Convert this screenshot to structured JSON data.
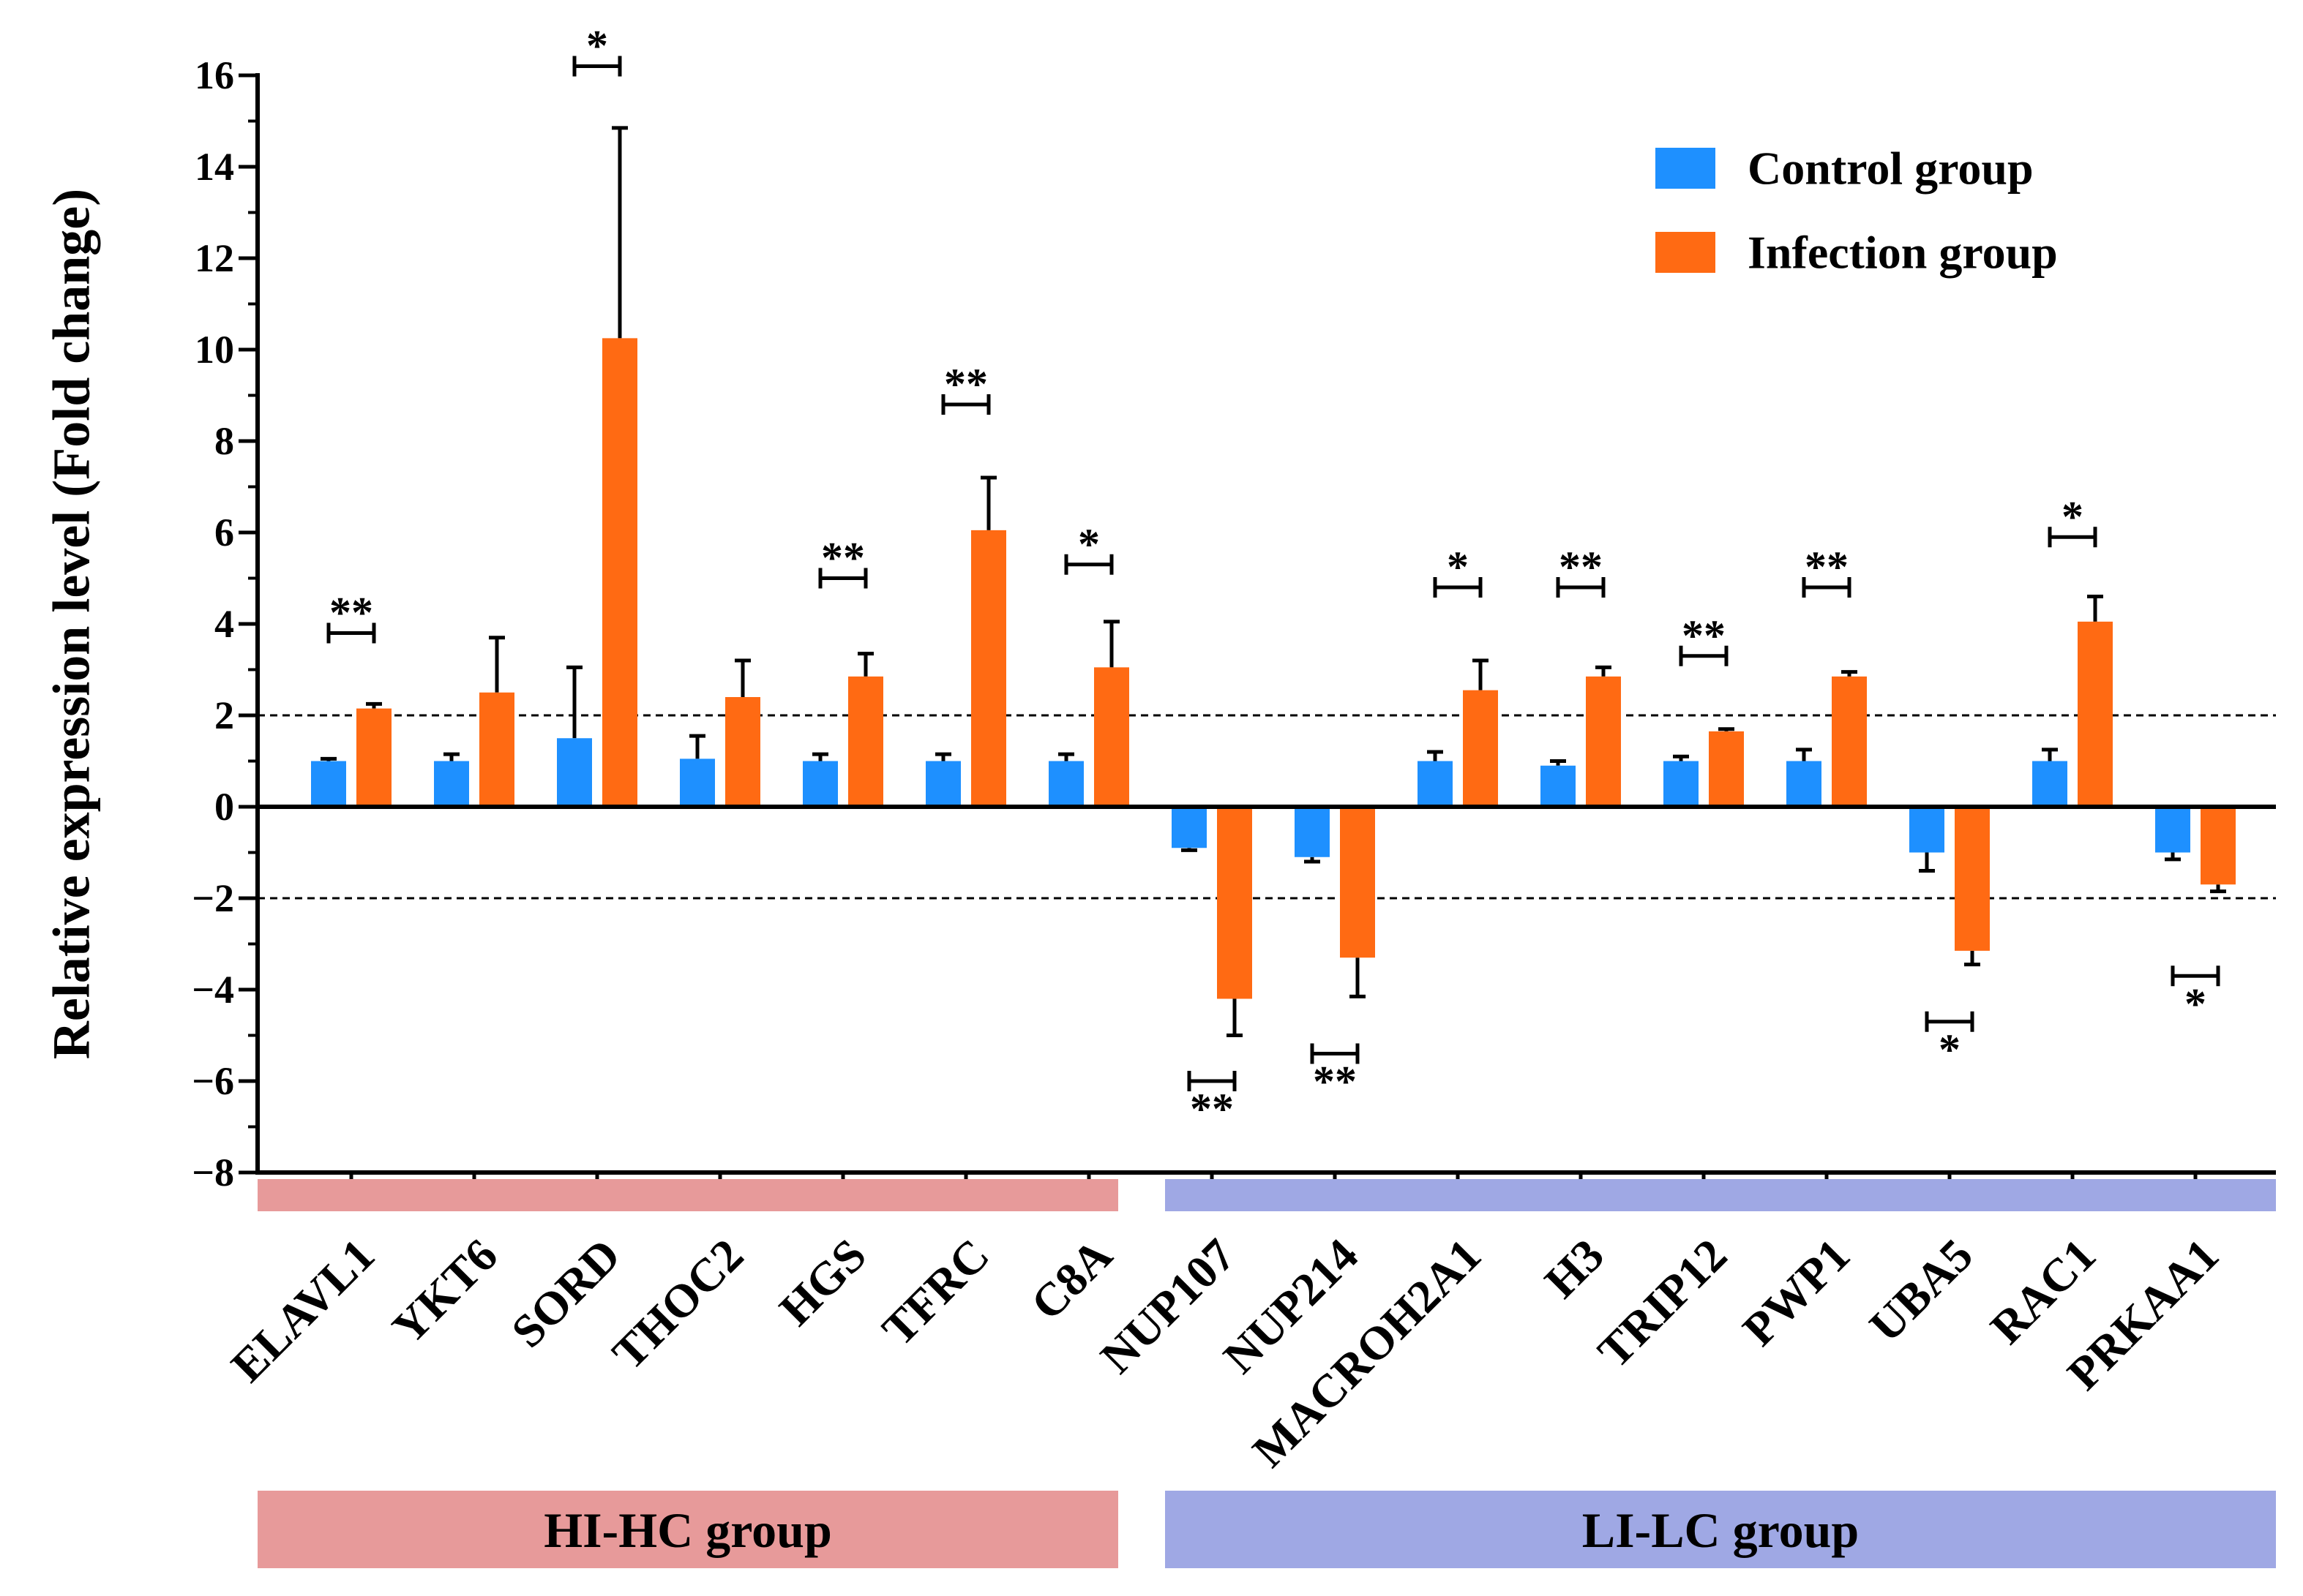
{
  "chart_data": {
    "type": "bar",
    "ylabel": "Relative expression level (Fold change)",
    "ylim": [
      -8,
      16
    ],
    "yticks": [
      16,
      14,
      12,
      10,
      8,
      6,
      4,
      2,
      0,
      -2,
      -4,
      -6,
      -8
    ],
    "ytick_labels": [
      "16",
      "14",
      "12",
      "10",
      "8",
      "6",
      "4",
      "2",
      "0",
      "−2",
      "−4",
      "−6",
      "−8"
    ],
    "threshold_lines": [
      2,
      -2
    ],
    "categories": [
      "ELAVL1",
      "YKT6",
      "SORD",
      "THOC2",
      "HGS",
      "TFRC",
      "C8A",
      "NUP107",
      "NUP214",
      "MACROH2A1",
      "H3",
      "TRIP12",
      "PWP1",
      "UBA5",
      "RAC1",
      "PRKAA1"
    ],
    "series": [
      {
        "name": "Control group",
        "color": "#1e90ff",
        "values": [
          1.0,
          1.0,
          1.5,
          1.05,
          1.0,
          1.0,
          1.0,
          -0.9,
          -1.1,
          1.0,
          0.9,
          1.0,
          1.0,
          -1.0,
          1.0,
          -1.0
        ],
        "errors": [
          0.05,
          0.15,
          1.55,
          0.5,
          0.15,
          0.15,
          0.15,
          0.05,
          0.1,
          0.2,
          0.1,
          0.1,
          0.25,
          0.4,
          0.25,
          0.15
        ]
      },
      {
        "name": "Infection group",
        "color": "#ff6a13",
        "values": [
          2.15,
          2.5,
          10.25,
          2.4,
          2.85,
          6.05,
          3.05,
          -4.2,
          -3.3,
          2.55,
          2.85,
          1.65,
          2.85,
          -3.15,
          4.05,
          -1.7
        ],
        "errors": [
          0.1,
          1.2,
          4.6,
          0.8,
          0.5,
          1.15,
          1.0,
          0.8,
          0.85,
          0.65,
          0.2,
          0.05,
          0.1,
          0.3,
          0.55,
          0.15
        ]
      }
    ],
    "significance": [
      "**",
      "",
      "*",
      "",
      "**",
      "**",
      "*",
      "**",
      "**",
      "*",
      "**",
      "**",
      "**",
      "*",
      "*",
      "*"
    ],
    "significance_y": [
      3.8,
      null,
      16.2,
      null,
      5.0,
      8.8,
      5.3,
      -6.0,
      -5.4,
      4.8,
      4.8,
      3.3,
      4.8,
      -4.7,
      5.9,
      -3.7
    ],
    "groups": [
      {
        "label": "HI-HC group",
        "color": "#e79a9a",
        "categories": [
          "ELAVL1",
          "YKT6",
          "SORD",
          "THOC2",
          "HGS",
          "TFRC",
          "C8A"
        ]
      },
      {
        "label": "LI-LC group",
        "color": "#9fa8e4",
        "categories": [
          "NUP107",
          "NUP214",
          "MACROH2A1",
          "H3",
          "TRIP12",
          "PWP1",
          "UBA5",
          "RAC1",
          "PRKAA1"
        ]
      }
    ],
    "legend": {
      "position": "top-right",
      "entries": [
        "Control group",
        "Infection group"
      ]
    }
  }
}
